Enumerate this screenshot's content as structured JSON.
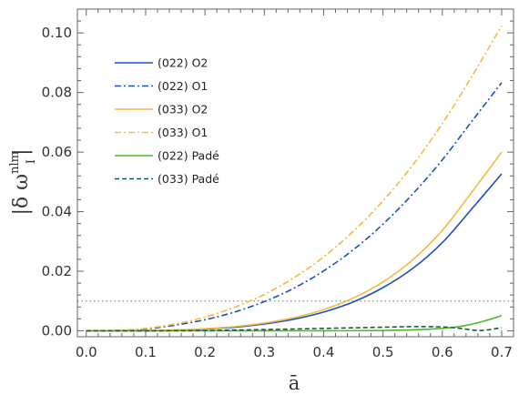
{
  "chart_data": {
    "type": "line",
    "xlabel": "ā",
    "ylabel": {
      "pre": "|δ ω",
      "sup": "nlm",
      "sub": "I",
      "post": "|"
    },
    "xlim": [
      -0.015,
      0.72
    ],
    "ylim": [
      -0.002,
      0.108
    ],
    "xticks": [
      0.0,
      0.1,
      0.2,
      0.3,
      0.4,
      0.5,
      0.6,
      0.7
    ],
    "xtick_labels": [
      "0.0",
      "0.1",
      "0.2",
      "0.3",
      "0.4",
      "0.5",
      "0.6",
      "0.7"
    ],
    "yticks": [
      0.0,
      0.02,
      0.04,
      0.06,
      0.08,
      0.1
    ],
    "ytick_labels": [
      "0.00",
      "0.02",
      "0.04",
      "0.06",
      "0.08",
      "0.10"
    ],
    "reference_line": {
      "y": 0.01,
      "style": "dotted",
      "color": "#888888"
    },
    "legend_position": "top-left",
    "grid": false,
    "series": [
      {
        "name": "(022) O2",
        "color": "#1f4fbf",
        "dash": "solid",
        "x": [
          0.0,
          0.05,
          0.1,
          0.15,
          0.2,
          0.25,
          0.3,
          0.35,
          0.4,
          0.45,
          0.5,
          0.55,
          0.6,
          0.65,
          0.7
        ],
        "y": [
          0.0,
          0.0,
          0.0,
          0.0002,
          0.0006,
          0.0012,
          0.0023,
          0.0039,
          0.0063,
          0.0097,
          0.0145,
          0.0209,
          0.0296,
          0.041,
          0.0527
        ]
      },
      {
        "name": "(022) O1",
        "color": "#1f4fbf",
        "dash": "dashdot",
        "x": [
          0.0,
          0.05,
          0.1,
          0.15,
          0.2,
          0.25,
          0.3,
          0.35,
          0.4,
          0.45,
          0.5,
          0.55,
          0.6,
          0.65,
          0.7
        ],
        "y": [
          0.0,
          0.0001,
          0.0006,
          0.0019,
          0.0037,
          0.0063,
          0.0098,
          0.0143,
          0.0201,
          0.0272,
          0.0358,
          0.0459,
          0.0574,
          0.0704,
          0.0833
        ]
      },
      {
        "name": "(033) O2",
        "color": "#f5b942",
        "dash": "solid",
        "x": [
          0.0,
          0.05,
          0.1,
          0.15,
          0.2,
          0.25,
          0.3,
          0.35,
          0.4,
          0.45,
          0.5,
          0.55,
          0.6,
          0.65,
          0.7
        ],
        "y": [
          0.0,
          0.0,
          0.0001,
          0.0003,
          0.0007,
          0.0014,
          0.0026,
          0.0044,
          0.0071,
          0.011,
          0.0164,
          0.0238,
          0.0337,
          0.0466,
          0.06
        ]
      },
      {
        "name": "(033) O1",
        "color": "#f5b942",
        "dash": "dashdot",
        "x": [
          0.0,
          0.05,
          0.1,
          0.15,
          0.2,
          0.25,
          0.3,
          0.35,
          0.4,
          0.45,
          0.5,
          0.55,
          0.6,
          0.65,
          0.7
        ],
        "y": [
          0.0,
          0.0001,
          0.0008,
          0.0023,
          0.0046,
          0.0079,
          0.0122,
          0.0178,
          0.0248,
          0.0334,
          0.0436,
          0.0556,
          0.0696,
          0.0855,
          0.1024
        ]
      },
      {
        "name": "(022) Padé",
        "color": "#4cb82a",
        "dash": "solid",
        "x": [
          0.0,
          0.1,
          0.2,
          0.3,
          0.4,
          0.5,
          0.55,
          0.6,
          0.62,
          0.64,
          0.66,
          0.68,
          0.7
        ],
        "y": [
          0.0,
          0.0,
          0.0,
          0.0,
          0.0,
          0.0001,
          0.0003,
          0.0008,
          0.0012,
          0.0018,
          0.0027,
          0.0038,
          0.0051
        ]
      },
      {
        "name": "(033) Padé",
        "color": "#1a5c3a",
        "dash": "dashed",
        "x": [
          0.0,
          0.1,
          0.2,
          0.3,
          0.35,
          0.4,
          0.45,
          0.5,
          0.55,
          0.6,
          0.63,
          0.66,
          0.68,
          0.7
        ],
        "y": [
          0.0,
          0.0,
          0.0001,
          0.0004,
          0.0006,
          0.0008,
          0.001,
          0.0012,
          0.0014,
          0.0013,
          0.0008,
          0.0001,
          0.0004,
          0.0011
        ]
      }
    ]
  }
}
